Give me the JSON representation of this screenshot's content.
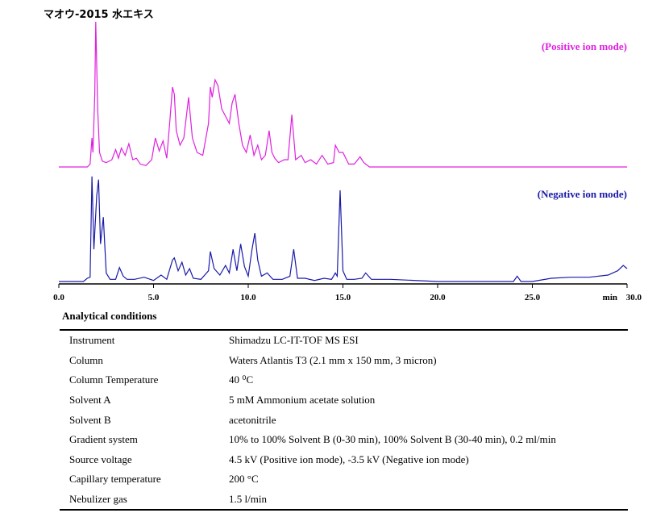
{
  "chart_data": {
    "type": "line",
    "title": "マオウ-2015 水エキス",
    "x_unit_label": "min",
    "xlim": [
      0,
      30
    ],
    "x_ticks": [
      "0.0",
      "5.0",
      "10.0",
      "15.0",
      "20.0",
      "25.0",
      "30.0"
    ],
    "grid": false,
    "y_axis_shown": false,
    "series": [
      {
        "name": "(Positive ion mode)",
        "color": "#e020e0",
        "x": [
          0.0,
          1.5,
          1.65,
          1.75,
          1.8,
          1.9,
          1.95,
          2.05,
          2.15,
          2.3,
          2.5,
          2.8,
          3.0,
          3.15,
          3.3,
          3.5,
          3.7,
          3.9,
          4.1,
          4.3,
          4.6,
          4.9,
          5.1,
          5.3,
          5.5,
          5.7,
          5.85,
          6.0,
          6.1,
          6.2,
          6.4,
          6.6,
          6.85,
          7.05,
          7.3,
          7.6,
          7.9,
          8.0,
          8.1,
          8.25,
          8.4,
          8.6,
          8.8,
          9.0,
          9.15,
          9.3,
          9.5,
          9.7,
          9.9,
          10.1,
          10.3,
          10.5,
          10.7,
          10.9,
          11.1,
          11.25,
          11.4,
          11.6,
          11.9,
          12.1,
          12.3,
          12.5,
          12.8,
          13.0,
          13.3,
          13.6,
          13.9,
          14.2,
          14.5,
          14.6,
          14.8,
          15.0,
          15.3,
          15.6,
          15.9,
          16.1,
          16.4,
          17.0,
          17.5,
          20.0,
          25.0,
          30.0
        ],
        "y": [
          0.0,
          0.0,
          0.02,
          0.2,
          0.1,
          0.5,
          1.0,
          0.4,
          0.1,
          0.04,
          0.03,
          0.05,
          0.12,
          0.06,
          0.13,
          0.08,
          0.16,
          0.05,
          0.06,
          0.02,
          0.01,
          0.05,
          0.2,
          0.11,
          0.18,
          0.06,
          0.3,
          0.55,
          0.5,
          0.25,
          0.15,
          0.2,
          0.48,
          0.2,
          0.1,
          0.08,
          0.3,
          0.55,
          0.48,
          0.6,
          0.56,
          0.4,
          0.35,
          0.3,
          0.44,
          0.5,
          0.3,
          0.15,
          0.1,
          0.22,
          0.08,
          0.15,
          0.05,
          0.08,
          0.25,
          0.1,
          0.06,
          0.03,
          0.05,
          0.05,
          0.36,
          0.05,
          0.08,
          0.03,
          0.05,
          0.02,
          0.08,
          0.02,
          0.03,
          0.15,
          0.1,
          0.1,
          0.02,
          0.02,
          0.07,
          0.03,
          0.0,
          0.0,
          0.0,
          0.0,
          0.0,
          0.0
        ]
      },
      {
        "name": "(Negative ion mode)",
        "color": "#1a1aa8",
        "x": [
          0.0,
          1.3,
          1.5,
          1.65,
          1.75,
          1.85,
          2.0,
          2.1,
          2.2,
          2.35,
          2.5,
          2.7,
          3.0,
          3.2,
          3.4,
          3.6,
          4.0,
          4.5,
          5.0,
          5.4,
          5.7,
          6.0,
          6.1,
          6.3,
          6.5,
          6.7,
          6.9,
          7.1,
          7.5,
          7.9,
          8.0,
          8.2,
          8.5,
          8.8,
          9.0,
          9.2,
          9.4,
          9.6,
          9.8,
          10.0,
          10.2,
          10.35,
          10.5,
          10.7,
          11.0,
          11.3,
          11.8,
          12.2,
          12.4,
          12.6,
          13.0,
          13.5,
          14.0,
          14.4,
          14.6,
          14.7,
          14.85,
          15.0,
          15.2,
          15.6,
          16.0,
          16.2,
          16.5,
          17.0,
          17.5,
          20.0,
          24.0,
          24.2,
          24.4,
          25.0,
          26.0,
          27.0,
          28.0,
          29.0,
          29.5,
          29.8,
          30.0
        ],
        "y": [
          0.0,
          0.0,
          0.03,
          0.04,
          0.98,
          0.3,
          0.8,
          0.95,
          0.35,
          0.6,
          0.08,
          0.02,
          0.02,
          0.13,
          0.05,
          0.02,
          0.02,
          0.04,
          0.01,
          0.06,
          0.02,
          0.2,
          0.22,
          0.1,
          0.18,
          0.06,
          0.12,
          0.03,
          0.02,
          0.1,
          0.28,
          0.12,
          0.06,
          0.15,
          0.08,
          0.3,
          0.1,
          0.35,
          0.14,
          0.05,
          0.3,
          0.45,
          0.2,
          0.05,
          0.08,
          0.02,
          0.02,
          0.05,
          0.3,
          0.03,
          0.03,
          0.01,
          0.03,
          0.02,
          0.08,
          0.05,
          0.85,
          0.1,
          0.02,
          0.02,
          0.03,
          0.08,
          0.02,
          0.02,
          0.02,
          0.0,
          0.0,
          0.05,
          0.0,
          0.0,
          0.03,
          0.04,
          0.04,
          0.06,
          0.1,
          0.15,
          0.12
        ]
      }
    ]
  },
  "conditions": {
    "heading": "Analytical conditions",
    "rows": [
      {
        "param": "Instrument",
        "value": "Shimadzu LC-IT-TOF MS ESI"
      },
      {
        "param": "Column",
        "value": "Waters Atlantis T3 (2.1 mm x 150 mm, 3 micron)"
      },
      {
        "param": "Column Temperature",
        "value": "40 ⁰C"
      },
      {
        "param": "Solvent A",
        "value": "5 mM Ammonium acetate solution"
      },
      {
        "param": "Solvent B",
        "value": "acetonitrile"
      },
      {
        "param": "Gradient system",
        "value": "10% to 100% Solvent B (0-30 min), 100% Solvent B (30-40 min), 0.2 ml/min"
      },
      {
        "param": "Source voltage",
        "value": "4.5 kV (Positive ion mode), -3.5 kV (Negative ion mode)"
      },
      {
        "param": "Capillary temperature",
        "value": "200 °C"
      },
      {
        "param": "Nebulizer gas",
        "value": "1.5 l/min"
      }
    ]
  }
}
